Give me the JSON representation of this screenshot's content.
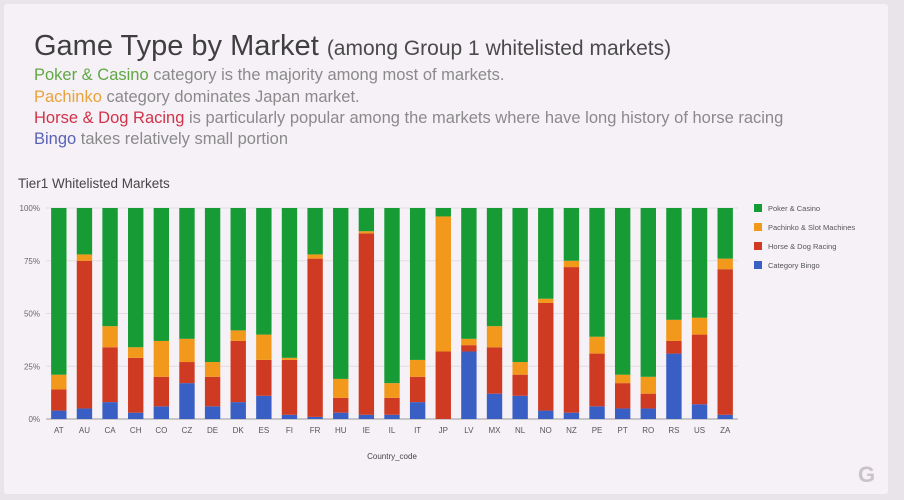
{
  "slide": {
    "title": "Game Type by Market",
    "title_suffix": "(among Group 1 whitelisted markets)",
    "notes": [
      {
        "highlight": "Poker & Casino",
        "rest": " category is the majority among most of markets."
      },
      {
        "highlight": "Pachinko",
        "rest": " category dominates Japan market."
      },
      {
        "highlight": "Horse & Dog Racing",
        "rest": " is particularly popular among the markets where have long history of horse racing"
      },
      {
        "highlight": "Bingo",
        "rest": " takes relatively small portion"
      }
    ],
    "logo": "G"
  },
  "chart_data": {
    "type": "bar",
    "stacked": true,
    "title": "Tier1 Whitelisted Markets",
    "xlabel": "Country_code",
    "ylabel": "",
    "ylim": [
      0,
      100
    ],
    "yticks": [
      "0%",
      "25%",
      "50%",
      "75%",
      "100%"
    ],
    "legend_position": "right",
    "categories": [
      "AT",
      "AU",
      "CA",
      "CH",
      "CO",
      "CZ",
      "DE",
      "DK",
      "ES",
      "FI",
      "FR",
      "HU",
      "IE",
      "IL",
      "IT",
      "JP",
      "LV",
      "MX",
      "NL",
      "NO",
      "NZ",
      "PE",
      "PT",
      "RO",
      "RS",
      "US",
      "ZA"
    ],
    "series": [
      {
        "name": "Category Bingo",
        "color": "#3a5fc4",
        "values": [
          4,
          5,
          8,
          3,
          6,
          17,
          6,
          8,
          11,
          2,
          1,
          3,
          2,
          2,
          8,
          0,
          32,
          12,
          11,
          4,
          3,
          6,
          5,
          5,
          31,
          7,
          2
        ]
      },
      {
        "name": "Horse & Dog Racing",
        "color": "#cf3b22",
        "values": [
          10,
          70,
          26,
          26,
          14,
          10,
          14,
          29,
          17,
          26,
          75,
          7,
          86,
          8,
          12,
          32,
          3,
          22,
          10,
          51,
          69,
          25,
          12,
          7,
          6,
          33,
          69
        ]
      },
      {
        "name": "Pachinko & Slot Machines",
        "color": "#f2981b",
        "values": [
          7,
          3,
          10,
          5,
          17,
          11,
          7,
          5,
          12,
          1,
          2,
          9,
          1,
          7,
          8,
          64,
          3,
          10,
          6,
          2,
          3,
          8,
          4,
          8,
          10,
          8,
          5
        ]
      },
      {
        "name": "Poker & Casino",
        "color": "#169b35",
        "values": [
          79,
          22,
          56,
          66,
          63,
          62,
          73,
          58,
          60,
          71,
          22,
          81,
          11,
          83,
          72,
          4,
          62,
          56,
          73,
          43,
          25,
          61,
          79,
          80,
          53,
          52,
          24
        ]
      }
    ],
    "legend_order": [
      "Poker & Casino",
      "Pachinko & Slot Machines",
      "Horse & Dog Racing",
      "Category Bingo"
    ]
  }
}
